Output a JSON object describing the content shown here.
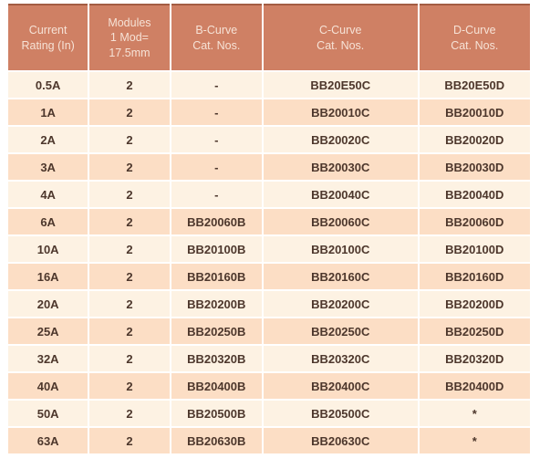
{
  "colors": {
    "page_bg": "#ffffff",
    "header_bg": "#cf8064",
    "header_edge": "#a35c43",
    "header_text": "#f6e2d6",
    "row_light": "#fdf2e3",
    "row_peach": "#fcdec5",
    "cell_text": "#4d372c"
  },
  "table": {
    "columns": [
      {
        "label": "Current\nRating (In)"
      },
      {
        "label": "Modules\n1 Mod=\n17.5mm"
      },
      {
        "label": "B-Curve\nCat. Nos."
      },
      {
        "label": "C-Curve\nCat. Nos."
      },
      {
        "label": "D-Curve\nCat. Nos."
      }
    ],
    "rows": [
      [
        "0.5A",
        "2",
        "-",
        "BB20E50C",
        "BB20E50D"
      ],
      [
        "1A",
        "2",
        "-",
        "BB20010C",
        "BB20010D"
      ],
      [
        "2A",
        "2",
        "-",
        "BB20020C",
        "BB20020D"
      ],
      [
        "3A",
        "2",
        "-",
        "BB20030C",
        "BB20030D"
      ],
      [
        "4A",
        "2",
        "-",
        "BB20040C",
        "BB20040D"
      ],
      [
        "6A",
        "2",
        "BB20060B",
        "BB20060C",
        "BB20060D"
      ],
      [
        "10A",
        "2",
        "BB20100B",
        "BB20100C",
        "BB20100D"
      ],
      [
        "16A",
        "2",
        "BB20160B",
        "BB20160C",
        "BB20160D"
      ],
      [
        "20A",
        "2",
        "BB20200B",
        "BB20200C",
        "BB20200D"
      ],
      [
        "25A",
        "2",
        "BB20250B",
        "BB20250C",
        "BB20250D"
      ],
      [
        "32A",
        "2",
        "BB20320B",
        "BB20320C",
        "BB20320D"
      ],
      [
        "40A",
        "2",
        "BB20400B",
        "BB20400C",
        "BB20400D"
      ],
      [
        "50A",
        "2",
        "BB20500B",
        "BB20500C",
        "*"
      ],
      [
        "63A",
        "2",
        "BB20630B",
        "BB20630C",
        "*"
      ]
    ]
  }
}
